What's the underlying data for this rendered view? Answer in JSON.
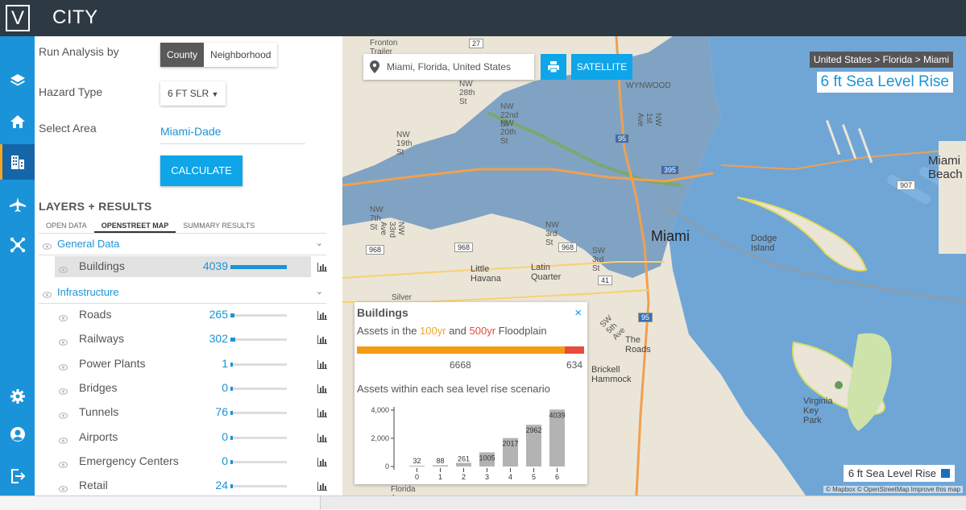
{
  "app": {
    "logo_letter": "V",
    "title": "CITY"
  },
  "sidenav": {
    "icons": [
      "layers-icon",
      "home-icon",
      "buildings-icon",
      "airport-icon",
      "network-icon",
      "settings-icon",
      "user-icon",
      "logout-icon"
    ],
    "active": "buildings-icon",
    "accent": "#1b93d8",
    "active_bg": "#1466a8"
  },
  "controls": {
    "run_by_label": "Run Analysis by",
    "run_by_options": [
      "County",
      "Neighborhood"
    ],
    "run_by_selected": "County",
    "hazard_label": "Hazard Type",
    "hazard_value": "6 FT SLR",
    "area_label": "Select Area",
    "area_value": "Miami-Dade",
    "calculate_label": "CALCULATE"
  },
  "layers": {
    "title": "LAYERS + RESULTS",
    "tabs": [
      "OPEN DATA",
      "OPENSTREET MAP",
      "SUMMARY RESULTS"
    ],
    "active_tab": "OPENSTREET MAP",
    "groups": [
      {
        "name": "General Data",
        "items": [
          {
            "name": "Buildings",
            "count": "4039",
            "fraction": 1.0,
            "selected": true
          }
        ]
      },
      {
        "name": "Infrastructure",
        "items": [
          {
            "name": "Roads",
            "count": "265",
            "fraction": 0.07
          },
          {
            "name": "Railways",
            "count": "302",
            "fraction": 0.08
          },
          {
            "name": "Power Plants",
            "count": "1",
            "fraction": 0.0
          },
          {
            "name": "Bridges",
            "count": "0",
            "fraction": 0.0
          },
          {
            "name": "Tunnels",
            "count": "76",
            "fraction": 0.02
          },
          {
            "name": "Airports",
            "count": "0",
            "fraction": 0.0
          },
          {
            "name": "Emergency Centers",
            "count": "0",
            "fraction": 0.0
          },
          {
            "name": "Retail",
            "count": "24",
            "fraction": 0.01
          }
        ]
      }
    ]
  },
  "map": {
    "search_value": "Miami, Florida, United States",
    "satellite_label": "SATELLITE",
    "breadcrumb": "United States > Florida > Miami",
    "scenario_title": "6 ft Sea Level Rise",
    "legend_label": "6 ft Sea Level Rise",
    "attribution": "© Mapbox © OpenStreetMap Improve this map",
    "water_color": "#6fa6d6",
    "flood_color": "#7a9fc2",
    "place_labels": [
      "Fronton Trailer Park",
      "NW 28th St",
      "WYNWOOD",
      "NW 22nd St",
      "NW 20th St",
      "NW 19th St",
      "NW 7th St",
      "NW 3rd St",
      "Miami",
      "Dodge Island",
      "Little Havana",
      "Latin Quarter",
      "Silver Court Trailer Park",
      "The Roads",
      "Brickell Hammock",
      "Virginia Key Park",
      "Florida Ave",
      "SW 3rd St",
      "NW 33rd Ave",
      "NW 1st Ave",
      "SW 5th Ave",
      "Miami Beach"
    ],
    "road_shields": [
      "27",
      "95",
      "395",
      "968",
      "968",
      "968",
      "41",
      "95",
      "907"
    ]
  },
  "popup": {
    "title": "Buildings",
    "close": "×",
    "floodplain_prefix": "Assets in the ",
    "floodplain_100": "100yr",
    "floodplain_and": " and ",
    "floodplain_500": "500yr",
    "floodplain_suffix": " Floodplain",
    "count_100yr": "6668",
    "count_500yr": "634",
    "scenario_heading": "Assets within each sea level rise scenario"
  },
  "chart_data": {
    "type": "bar",
    "title": "Assets within each sea level rise scenario",
    "categories": [
      "0",
      "1",
      "2",
      "3",
      "4",
      "5",
      "6"
    ],
    "values": [
      32,
      88,
      261,
      1005,
      2017,
      2962,
      4039
    ],
    "ylim": [
      0,
      4000
    ],
    "yticks": [
      "4,000",
      "2,000",
      "0"
    ],
    "xlabel": "",
    "ylabel": "",
    "bar_color": "#b3b3b3"
  },
  "colors": {
    "topbar": "#2d3a44",
    "floodplain_100yr": "#f39c12",
    "floodplain_500yr": "#e74c3c",
    "button": "#0ea5e9"
  }
}
